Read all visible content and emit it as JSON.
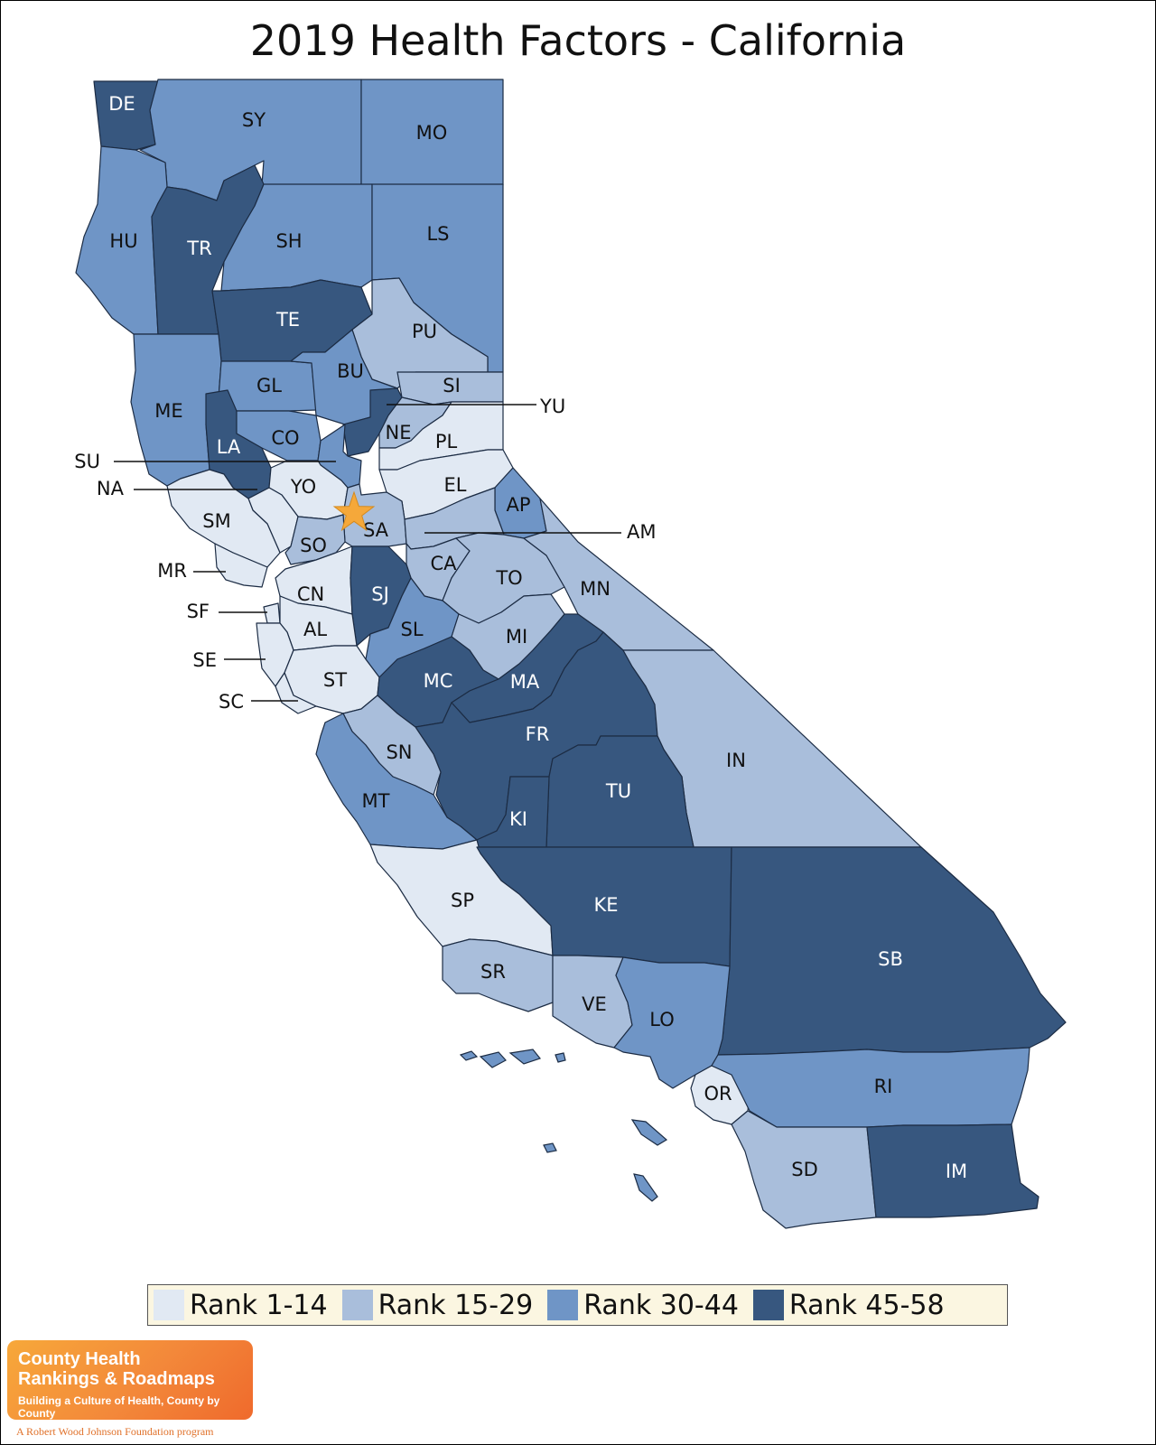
{
  "title": "2019 Health Factors - California",
  "colors": {
    "rank_1_14": "#e1e9f3",
    "rank_15_29": "#a9bedb",
    "rank_30_44": "#6f95c6",
    "rank_45_58": "#37577f",
    "star": "#f5a83a"
  },
  "legend": [
    {
      "label": "Rank 1-14",
      "tier": "rank_1_14"
    },
    {
      "label": "Rank 15-29",
      "tier": "rank_15_29"
    },
    {
      "label": "Rank 30-44",
      "tier": "rank_30_44"
    },
    {
      "label": "Rank 45-58",
      "tier": "rank_45_58"
    }
  ],
  "counties": [
    {
      "code": "DE",
      "tier": "rank_45_58"
    },
    {
      "code": "SY",
      "tier": "rank_30_44"
    },
    {
      "code": "MO",
      "tier": "rank_30_44"
    },
    {
      "code": "HU",
      "tier": "rank_30_44"
    },
    {
      "code": "TR",
      "tier": "rank_45_58"
    },
    {
      "code": "SH",
      "tier": "rank_30_44"
    },
    {
      "code": "LS",
      "tier": "rank_30_44"
    },
    {
      "code": "TE",
      "tier": "rank_45_58"
    },
    {
      "code": "PU",
      "tier": "rank_15_29"
    },
    {
      "code": "ME",
      "tier": "rank_30_44"
    },
    {
      "code": "GL",
      "tier": "rank_30_44"
    },
    {
      "code": "BU",
      "tier": "rank_30_44"
    },
    {
      "code": "SI",
      "tier": "rank_15_29"
    },
    {
      "code": "YU",
      "tier": "rank_45_58"
    },
    {
      "code": "LA",
      "tier": "rank_45_58"
    },
    {
      "code": "CO",
      "tier": "rank_30_44"
    },
    {
      "code": "NE",
      "tier": "rank_15_29"
    },
    {
      "code": "PL",
      "tier": "rank_1_14"
    },
    {
      "code": "SU",
      "tier": "rank_30_44"
    },
    {
      "code": "YO",
      "tier": "rank_1_14"
    },
    {
      "code": "EL",
      "tier": "rank_1_14"
    },
    {
      "code": "NA",
      "tier": "rank_1_14"
    },
    {
      "code": "AP",
      "tier": "rank_30_44"
    },
    {
      "code": "SM",
      "tier": "rank_1_14"
    },
    {
      "code": "SA",
      "tier": "rank_15_29"
    },
    {
      "code": "AM",
      "tier": "rank_15_29"
    },
    {
      "code": "SO",
      "tier": "rank_15_29"
    },
    {
      "code": "CA",
      "tier": "rank_15_29"
    },
    {
      "code": "MR",
      "tier": "rank_1_14"
    },
    {
      "code": "TO",
      "tier": "rank_15_29"
    },
    {
      "code": "MN",
      "tier": "rank_15_29"
    },
    {
      "code": "CN",
      "tier": "rank_1_14"
    },
    {
      "code": "SJ",
      "tier": "rank_45_58"
    },
    {
      "code": "SF",
      "tier": "rank_1_14"
    },
    {
      "code": "AL",
      "tier": "rank_1_14"
    },
    {
      "code": "SL",
      "tier": "rank_30_44"
    },
    {
      "code": "MI",
      "tier": "rank_15_29"
    },
    {
      "code": "SE",
      "tier": "rank_1_14"
    },
    {
      "code": "ST",
      "tier": "rank_1_14"
    },
    {
      "code": "MC",
      "tier": "rank_45_58"
    },
    {
      "code": "MA",
      "tier": "rank_45_58"
    },
    {
      "code": "SC",
      "tier": "rank_1_14"
    },
    {
      "code": "FR",
      "tier": "rank_45_58"
    },
    {
      "code": "IN",
      "tier": "rank_15_29"
    },
    {
      "code": "SN",
      "tier": "rank_15_29"
    },
    {
      "code": "TU",
      "tier": "rank_45_58"
    },
    {
      "code": "MT",
      "tier": "rank_30_44"
    },
    {
      "code": "KI",
      "tier": "rank_45_58"
    },
    {
      "code": "SP",
      "tier": "rank_1_14"
    },
    {
      "code": "KE",
      "tier": "rank_45_58"
    },
    {
      "code": "SB",
      "tier": "rank_45_58"
    },
    {
      "code": "SR",
      "tier": "rank_15_29"
    },
    {
      "code": "VE",
      "tier": "rank_15_29"
    },
    {
      "code": "LO",
      "tier": "rank_30_44"
    },
    {
      "code": "OR",
      "tier": "rank_1_14"
    },
    {
      "code": "RI",
      "tier": "rank_30_44"
    },
    {
      "code": "SD",
      "tier": "rank_15_29"
    },
    {
      "code": "IM",
      "tier": "rank_45_58"
    }
  ],
  "logo": {
    "line1": "County Health",
    "line2": "Rankings & Roadmaps",
    "tagline": "Building a Culture of Health, County by County",
    "footer": "A Robert Wood Johnson Foundation program"
  }
}
